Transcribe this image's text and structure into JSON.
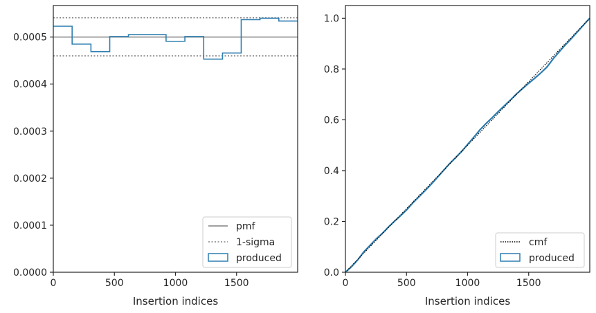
{
  "colors": {
    "produced": "#2e7eb0",
    "pmf": "#808080",
    "sigma": "#808080",
    "cmf": "#000000",
    "axis": "#262626"
  },
  "chart_data": [
    {
      "type": "histogram-step",
      "xlabel": "Insertion indices",
      "ylabel": "",
      "xlim": [
        0,
        2000
      ],
      "ylim": [
        0,
        0.000567
      ],
      "xticks": [
        0,
        500,
        1000,
        1500
      ],
      "xtick_labels": [
        "0",
        "500",
        "1000",
        "1500"
      ],
      "yticks": [
        0,
        0.0001,
        0.0002,
        0.0003,
        0.0004,
        0.0005
      ],
      "ytick_labels": [
        "0.0000",
        "0.0001",
        "0.0002",
        "0.0003",
        "0.0004",
        "0.0005"
      ],
      "bin_edges": [
        0,
        154,
        308,
        462,
        615,
        769,
        923,
        1077,
        1231,
        1385,
        1538,
        1692,
        1846,
        2000
      ],
      "produced": [
        0.000523,
        0.000485,
        0.000469,
        0.000501,
        0.000505,
        0.000505,
        0.000491,
        0.000501,
        0.000453,
        0.000466,
        0.000537,
        0.00054,
        0.000534
      ],
      "pmf": 0.0005,
      "sigma_upper": 0.000541,
      "sigma_lower": 0.00046,
      "grid": false,
      "legend_position": "lower-right",
      "legend": [
        "pmf",
        "1-sigma",
        "produced"
      ]
    },
    {
      "type": "line",
      "xlabel": "Insertion indices",
      "ylabel": "",
      "xlim": [
        0,
        2000
      ],
      "ylim": [
        0,
        1.05
      ],
      "xticks": [
        0,
        500,
        1000,
        1500
      ],
      "xtick_labels": [
        "0",
        "500",
        "1000",
        "1500"
      ],
      "yticks": [
        0,
        0.2,
        0.4,
        0.6,
        0.8,
        1.0
      ],
      "ytick_labels": [
        "0.0",
        "0.2",
        "0.4",
        "0.6",
        "0.8",
        "1.0"
      ],
      "cmf": {
        "x": [
          0,
          2000
        ],
        "y": [
          0,
          1.0
        ]
      },
      "produced": {
        "x": [
          0,
          50,
          100,
          150,
          200,
          250,
          300,
          350,
          400,
          450,
          500,
          550,
          600,
          650,
          700,
          750,
          800,
          850,
          900,
          950,
          1000,
          1050,
          1100,
          1150,
          1200,
          1250,
          1300,
          1350,
          1400,
          1450,
          1500,
          1550,
          1600,
          1650,
          1700,
          1750,
          1800,
          1850,
          1900,
          1950,
          2000
        ],
        "y": [
          0.0,
          0.022,
          0.048,
          0.08,
          0.105,
          0.13,
          0.152,
          0.177,
          0.2,
          0.222,
          0.245,
          0.272,
          0.296,
          0.32,
          0.345,
          0.372,
          0.399,
          0.426,
          0.45,
          0.475,
          0.503,
          0.531,
          0.56,
          0.585,
          0.608,
          0.632,
          0.655,
          0.678,
          0.702,
          0.723,
          0.744,
          0.764,
          0.785,
          0.808,
          0.84,
          0.868,
          0.895,
          0.92,
          0.947,
          0.974,
          1.0
        ]
      },
      "grid": false,
      "legend_position": "lower-right",
      "legend": [
        "cmf",
        "produced"
      ]
    }
  ]
}
